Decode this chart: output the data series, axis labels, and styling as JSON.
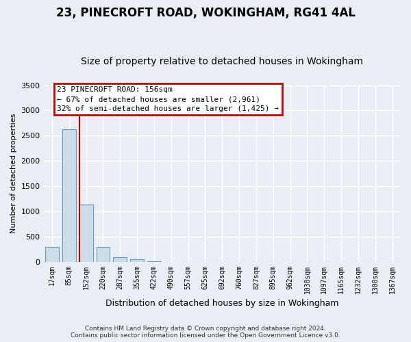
{
  "title": "23, PINECROFT ROAD, WOKINGHAM, RG41 4AL",
  "subtitle": "Size of property relative to detached houses in Wokingham",
  "xlabel": "Distribution of detached houses by size in Wokingham",
  "ylabel": "Number of detached properties",
  "footer1": "Contains HM Land Registry data © Crown copyright and database right 2024.",
  "footer2": "Contains public sector information licensed under the Open Government Licence v3.0.",
  "property_label": "23 PINECROFT ROAD: 156sqm",
  "annotation_line1": "← 67% of detached houses are smaller (2,961)",
  "annotation_line2": "32% of semi-detached houses are larger (1,425) →",
  "categories": [
    "17sqm",
    "85sqm",
    "152sqm",
    "220sqm",
    "287sqm",
    "355sqm",
    "422sqm",
    "490sqm",
    "557sqm",
    "625sqm",
    "692sqm",
    "760sqm",
    "827sqm",
    "895sqm",
    "962sqm",
    "1030sqm",
    "1097sqm",
    "1165sqm",
    "1232sqm",
    "1300sqm",
    "1367sqm"
  ],
  "values": [
    290,
    2620,
    1140,
    290,
    95,
    45,
    5,
    0,
    0,
    0,
    0,
    0,
    0,
    0,
    0,
    0,
    0,
    0,
    0,
    0,
    0
  ],
  "bar_color": "#ccdde8",
  "bar_edge_color": "#6699bb",
  "vline_color": "#cc0000",
  "vline_index": 2,
  "annotation_box_color": "#cc0000",
  "annotation_fill": "white",
  "ylim": [
    0,
    3500
  ],
  "yticks": [
    0,
    500,
    1000,
    1500,
    2000,
    2500,
    3000,
    3500
  ],
  "background_color": "#e8eef4",
  "plot_bg_color": "#e8eef4",
  "grid_color": "white",
  "title_fontsize": 12,
  "subtitle_fontsize": 10,
  "ylabel_fontsize": 8,
  "xlabel_fontsize": 9
}
